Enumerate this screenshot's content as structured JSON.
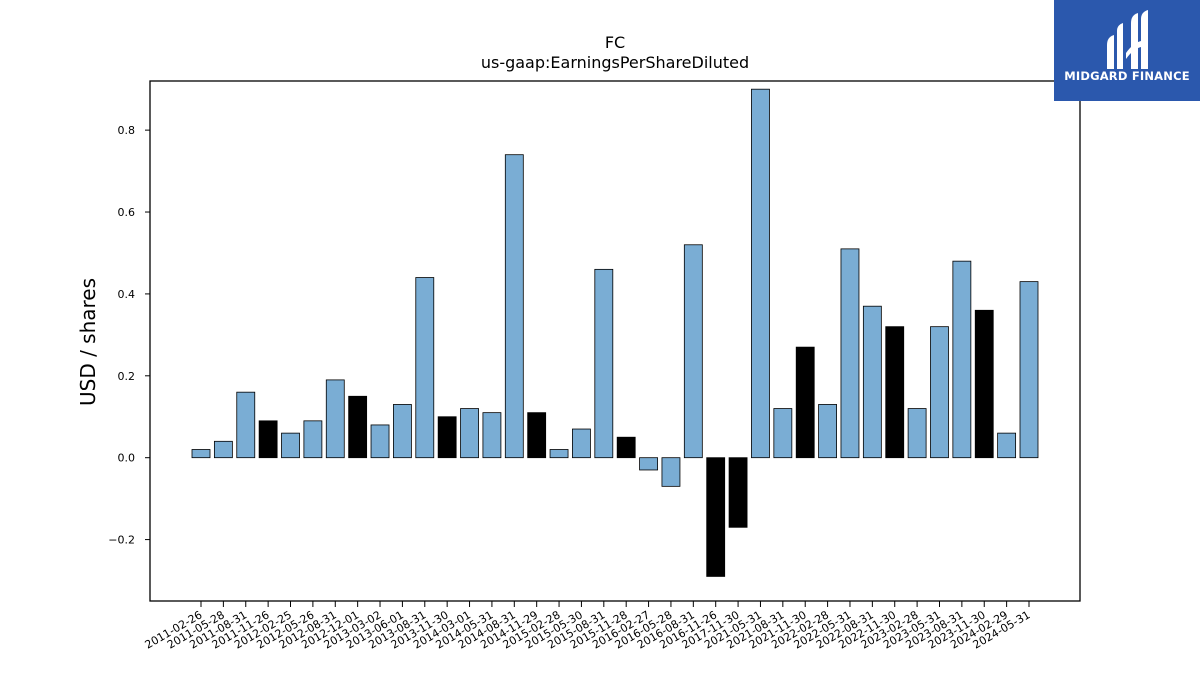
{
  "chart_data": {
    "type": "bar",
    "title": "FC",
    "subtitle": "us-gaap:EarningsPerShareDiluted",
    "xlabel": "",
    "ylabel": "USD / shares",
    "ylim": [
      -0.35,
      0.92
    ],
    "yticks": [
      -0.2,
      0.0,
      0.2,
      0.4,
      0.6,
      0.8
    ],
    "ytick_labels": [
      "−0.2",
      "0.0",
      "0.2",
      "0.4",
      "0.6",
      "0.8"
    ],
    "grid": false,
    "categories": [
      "2011-02-26",
      "2011-05-28",
      "2011-08-31",
      "2011-11-26",
      "2012-02-25",
      "2012-05-26",
      "2012-08-31",
      "2012-12-01",
      "2013-03-02",
      "2013-06-01",
      "2013-08-31",
      "2013-11-30",
      "2014-03-01",
      "2014-05-31",
      "2014-08-31",
      "2014-11-29",
      "2015-02-28",
      "2015-05-30",
      "2015-08-31",
      "2015-11-28",
      "2016-02-27",
      "2016-05-28",
      "2016-08-31",
      "2016-11-26",
      "2017-11-30",
      "2021-05-31",
      "2021-08-31",
      "2021-11-30",
      "2022-02-28",
      "2022-05-31",
      "2022-08-31",
      "2022-11-30",
      "2023-02-28",
      "2023-05-31",
      "2023-08-31",
      "2023-11-30",
      "2024-02-29",
      "2024-05-31"
    ],
    "values": [
      0.02,
      0.04,
      0.16,
      0.09,
      0.06,
      0.09,
      0.19,
      0.15,
      0.08,
      0.13,
      0.44,
      0.1,
      0.12,
      0.11,
      0.74,
      0.11,
      0.02,
      0.07,
      0.46,
      0.05,
      -0.03,
      -0.07,
      0.52,
      -0.29,
      -0.17,
      0.9,
      0.12,
      0.27,
      0.13,
      0.51,
      0.37,
      0.32,
      0.12,
      0.32,
      0.48,
      0.36,
      0.06,
      0.43
    ],
    "highlight": [
      false,
      false,
      false,
      true,
      false,
      false,
      false,
      true,
      false,
      false,
      false,
      true,
      false,
      false,
      false,
      true,
      false,
      false,
      false,
      true,
      false,
      false,
      false,
      true,
      true,
      false,
      false,
      true,
      false,
      false,
      false,
      true,
      false,
      false,
      false,
      true,
      false,
      false
    ],
    "colors": {
      "bar": "#7aadd4",
      "highlight": "#000000",
      "edge": "#000000"
    }
  },
  "logo": {
    "text": "MIDGARD FINANCE",
    "background": "#2b58ad"
  }
}
